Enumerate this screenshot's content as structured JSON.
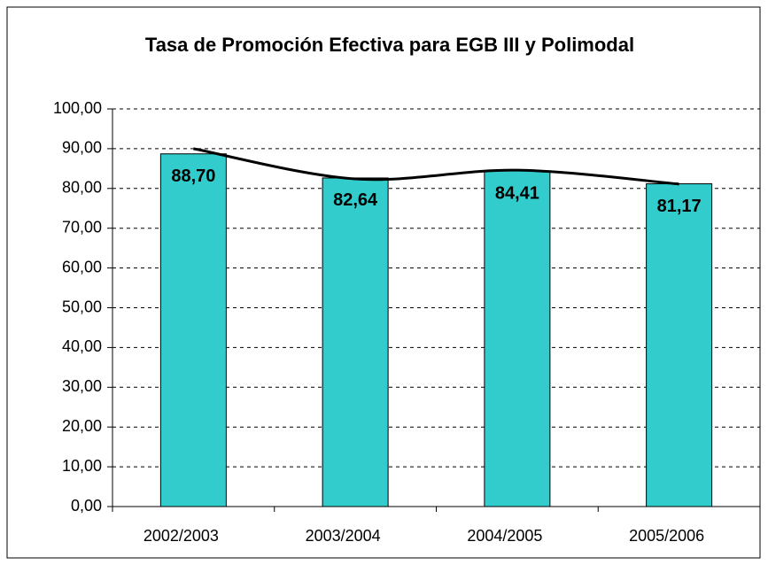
{
  "chart_data": {
    "type": "bar",
    "title": "Tasa de Promoción Efectiva para EGB III y Polimodal",
    "categories": [
      "2002/2003",
      "2003/2004",
      "2004/2005",
      "2005/2006"
    ],
    "series": [
      {
        "color": "#33cccc",
        "values": [
          88.7,
          82.64,
          84.41,
          81.17
        ],
        "value_labels": [
          "88,70",
          "82,64",
          "84,41",
          "81,17"
        ]
      }
    ],
    "trendline": {
      "color": "#000000",
      "values": [
        90.0,
        82.4,
        84.6,
        81.1
      ]
    },
    "ylim": [
      0,
      100
    ],
    "yticks": [
      {
        "value": 0,
        "label": "0,00"
      },
      {
        "value": 10,
        "label": "10,00"
      },
      {
        "value": 20,
        "label": "20,00"
      },
      {
        "value": 30,
        "label": "30,00"
      },
      {
        "value": 40,
        "label": "40,00"
      },
      {
        "value": 50,
        "label": "50,00"
      },
      {
        "value": 60,
        "label": "60,00"
      },
      {
        "value": 70,
        "label": "70,00"
      },
      {
        "value": 80,
        "label": "80,00"
      },
      {
        "value": 90,
        "label": "90,00"
      },
      {
        "value": 100,
        "label": "100,00"
      }
    ],
    "grid": true
  }
}
